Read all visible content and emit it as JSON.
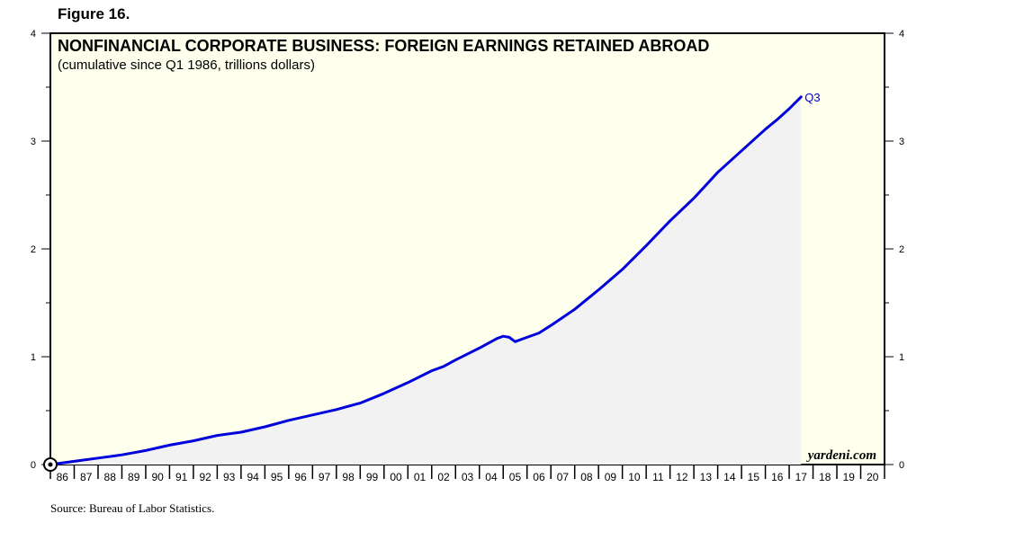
{
  "figure_label": "Figure 16.",
  "source": "Source: Bureau of Labor Statistics.",
  "chart_data": {
    "type": "area",
    "title": "NONFINANCIAL CORPORATE BUSINESS: FOREIGN EARNINGS RETAINED ABROAD",
    "subtitle": "(cumulative since Q1 1986, trillions dollars)",
    "xlabel": "",
    "ylabel": "",
    "xlim": [
      1986,
      2021
    ],
    "ylim": [
      0,
      4
    ],
    "y_ticks": [
      0,
      1,
      2,
      3,
      4
    ],
    "x_tick_labels": [
      "86",
      "87",
      "88",
      "89",
      "90",
      "91",
      "92",
      "93",
      "94",
      "95",
      "96",
      "97",
      "98",
      "99",
      "00",
      "01",
      "02",
      "03",
      "04",
      "05",
      "06",
      "07",
      "08",
      "09",
      "10",
      "11",
      "12",
      "13",
      "14",
      "15",
      "16",
      "17",
      "18",
      "19",
      "20"
    ],
    "grid": false,
    "last_point_label": "Q3",
    "watermark": "yardeni.com",
    "colors": {
      "line": "#0000dd",
      "fill": "#f2f2f2",
      "background": "#ffffee"
    },
    "x": [
      1986.0,
      1987.0,
      1988.0,
      1989.0,
      1990.0,
      1991.0,
      1992.0,
      1993.0,
      1994.0,
      1995.0,
      1996.0,
      1997.0,
      1998.0,
      1999.0,
      2000.0,
      2001.0,
      2002.0,
      2002.5,
      2003.0,
      2004.0,
      2004.75,
      2005.0,
      2005.25,
      2005.5,
      2006.0,
      2006.5,
      2007.0,
      2008.0,
      2009.0,
      2010.0,
      2011.0,
      2012.0,
      2013.0,
      2014.0,
      2015.0,
      2016.0,
      2016.5,
      2017.0,
      2017.5
    ],
    "values": [
      0.0,
      0.03,
      0.06,
      0.09,
      0.13,
      0.18,
      0.22,
      0.27,
      0.3,
      0.35,
      0.41,
      0.46,
      0.51,
      0.57,
      0.66,
      0.76,
      0.87,
      0.91,
      0.97,
      1.08,
      1.17,
      1.19,
      1.18,
      1.14,
      1.18,
      1.22,
      1.29,
      1.44,
      1.62,
      1.81,
      2.03,
      2.26,
      2.47,
      2.71,
      2.91,
      3.11,
      3.2,
      3.3,
      3.41
    ]
  }
}
